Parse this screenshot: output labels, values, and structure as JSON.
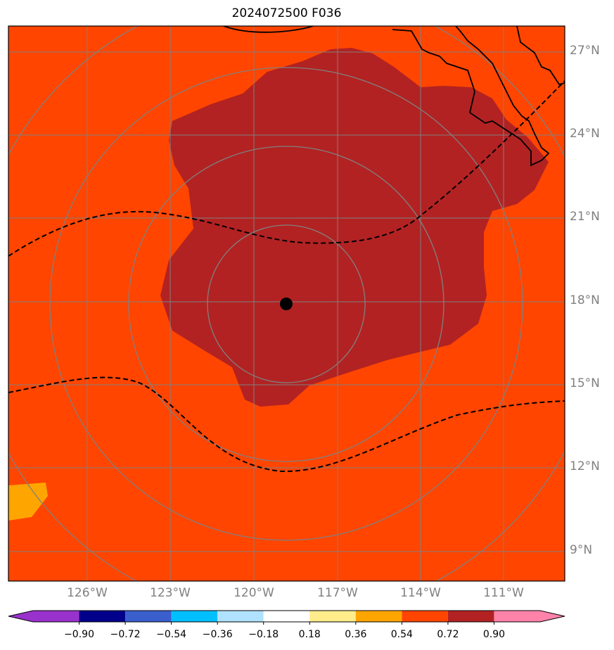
{
  "title": "2024072500 F036",
  "lat_labels": [
    "27°N",
    "24°N",
    "21°N",
    "18°N",
    "15°N",
    "12°N",
    "9°N"
  ],
  "lon_labels": [
    "126°W",
    "123°W",
    "120°W",
    "117°W",
    "114°W",
    "111°W"
  ],
  "colorbar": {
    "ticks": [
      "−0.90",
      "−0.72",
      "−0.54",
      "−0.36",
      "−0.18",
      "0.18",
      "0.36",
      "0.54",
      "0.72",
      "0.90"
    ],
    "colors": [
      "#9932cc",
      "#00008b",
      "#3a5fcd",
      "#00bfff",
      "#b0e2ff",
      "#ffffff",
      "#ffec8b",
      "#ffa500",
      "#ff4500",
      "#b22222",
      "#ff82ab"
    ]
  },
  "storm_center": {
    "lat": 18.0,
    "lon": -119.0
  },
  "colors": {
    "background_field": "#ff4500",
    "core_field": "#b22222",
    "patch": "#ffa500",
    "grid": "#808080"
  }
}
